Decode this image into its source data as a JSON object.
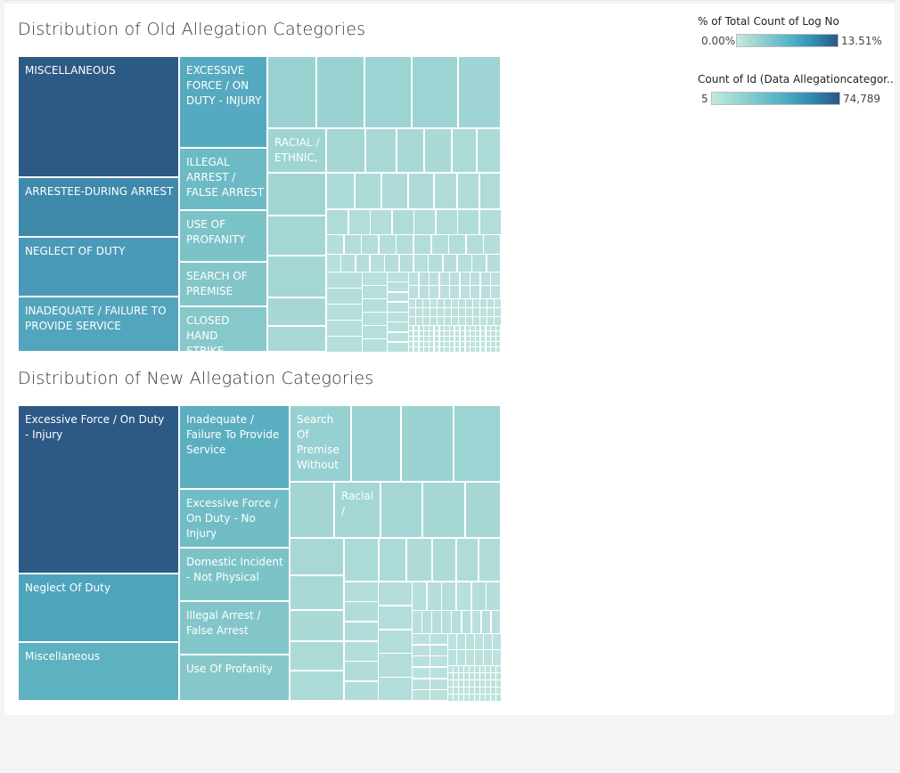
{
  "dashboard": {
    "old_treemap": {
      "title": "Distribution of Old Allegation Categories",
      "labeled_cells": [
        {
          "label": "MISCELLANEOUS",
          "color": "#2d5985"
        },
        {
          "label": "ARRESTEE-DURING ARREST",
          "color": "#3f89ab"
        },
        {
          "label": "NEGLECT OF DUTY",
          "color": "#4a99b8"
        },
        {
          "label": "INADEQUATE / FAILURE TO PROVIDE SERVICE",
          "color": "#52a5bd"
        },
        {
          "label": "EXCESSIVE FORCE / ON DUTY - INJURY",
          "color": "#55a9c0"
        },
        {
          "label": "ILLEGAL ARREST / FALSE ARREST",
          "color": "#6cbac4"
        },
        {
          "label": "USE OF PROFANITY",
          "color": "#7cc3c8"
        },
        {
          "label": "SEARCH OF PREMISE",
          "color": "#83c6c9"
        },
        {
          "label": "CLOSED HAND STRIKE",
          "color": "#87c8ca"
        },
        {
          "label": "RACIAL / ETHNIC,",
          "color": "#9fd4d3"
        }
      ]
    },
    "new_treemap": {
      "title": "Distribution of New Allegation Categories",
      "labeled_cells": [
        {
          "label": "Excessive Force / On Duty - Injury",
          "color": "#2d5985"
        },
        {
          "label": "Neglect Of Duty",
          "color": "#4fa4bd"
        },
        {
          "label": "Miscellaneous",
          "color": "#5db1c1"
        },
        {
          "label": "Inadequate / Failure To Provide Service",
          "color": "#5aaec0"
        },
        {
          "label": "Excessive Force / On Duty - No Injury",
          "color": "#71bdc5"
        },
        {
          "label": "Domestic Incident - Not Physical",
          "color": "#7cc3c8"
        },
        {
          "label": "Illegal Arrest / False Arrest",
          "color": "#82c6c9"
        },
        {
          "label": "Use Of Profanity",
          "color": "#86c8ca"
        },
        {
          "label": "Search Of Premise Without",
          "color": "#97d0d0"
        },
        {
          "label": "Racial /",
          "color": "#a3d6d4"
        }
      ]
    }
  },
  "legends": {
    "percent": {
      "title": "% of Total Count of Log No",
      "min": "0.00%",
      "max": "13.51%"
    },
    "count": {
      "title": "Count of Id (Data Allegationcategor..",
      "min": "5",
      "max": "74,789"
    }
  }
}
